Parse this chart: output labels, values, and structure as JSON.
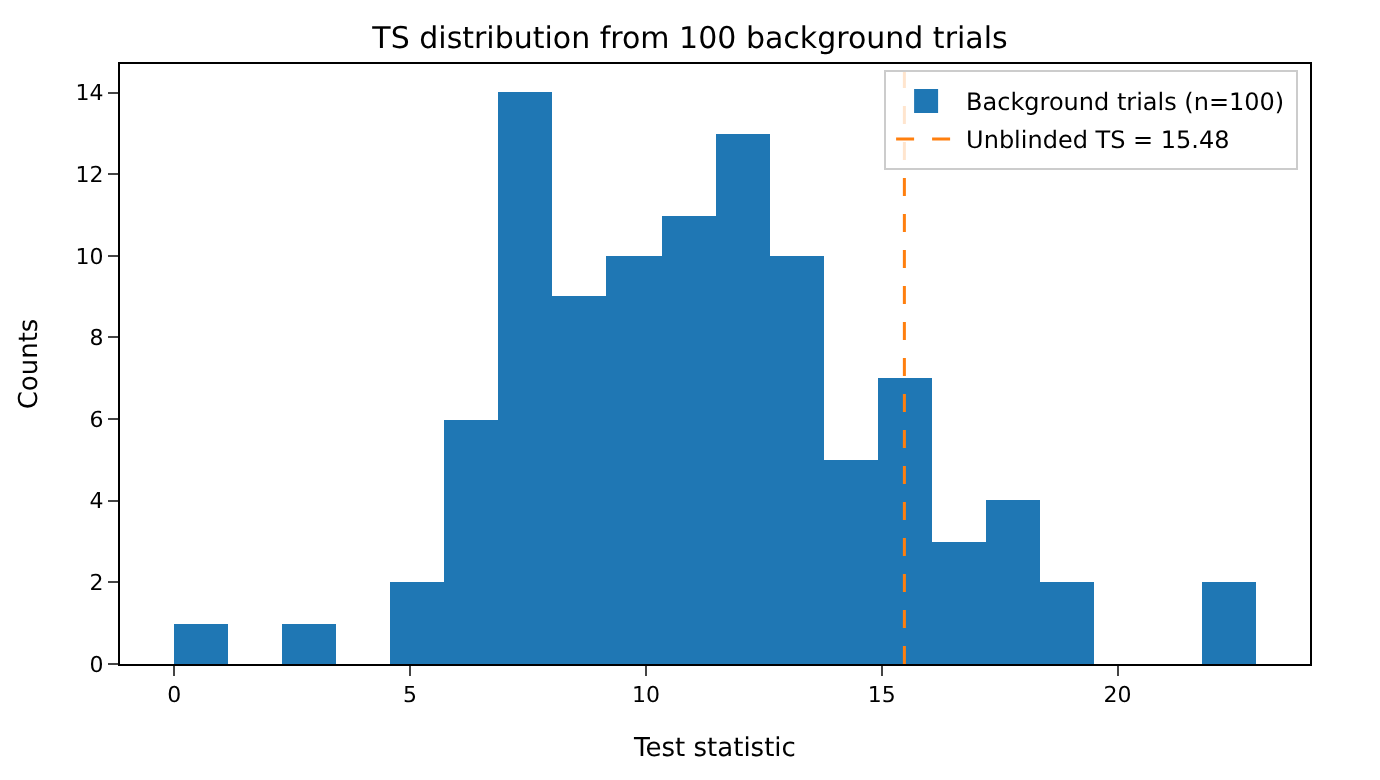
{
  "chart_data": {
    "type": "histogram",
    "title": "TS distribution from 100 background trials",
    "xlabel": "Test statistic",
    "ylabel": "Counts",
    "bins": [
      0,
      1.15,
      2.29,
      3.44,
      4.59,
      5.73,
      6.88,
      8.03,
      9.17,
      10.32,
      11.47,
      12.61,
      13.76,
      14.9,
      16.05,
      17.2,
      18.34,
      19.49,
      20.64,
      21.78,
      22.93
    ],
    "series": [
      {
        "name": "Background trials (n=100)",
        "color": "#1f77b4",
        "values": [
          1,
          0,
          1,
          0,
          2,
          6,
          14,
          9,
          10,
          11,
          13,
          10,
          5,
          7,
          3,
          4,
          2,
          0,
          0,
          2
        ]
      }
    ],
    "ref_lines": [
      {
        "axis": "x",
        "value": 15.48,
        "label": "Unblinded TS = 15.48",
        "color": "#ff7f0e",
        "line_style": "dashed"
      }
    ],
    "xlim": [
      -1.15,
      24.08
    ],
    "xticks": [
      0,
      5,
      10,
      15,
      20
    ],
    "ylim": [
      0,
      14.7
    ],
    "yticks": [
      0,
      2,
      4,
      6,
      8,
      10,
      12,
      14
    ],
    "legend": "top right"
  }
}
